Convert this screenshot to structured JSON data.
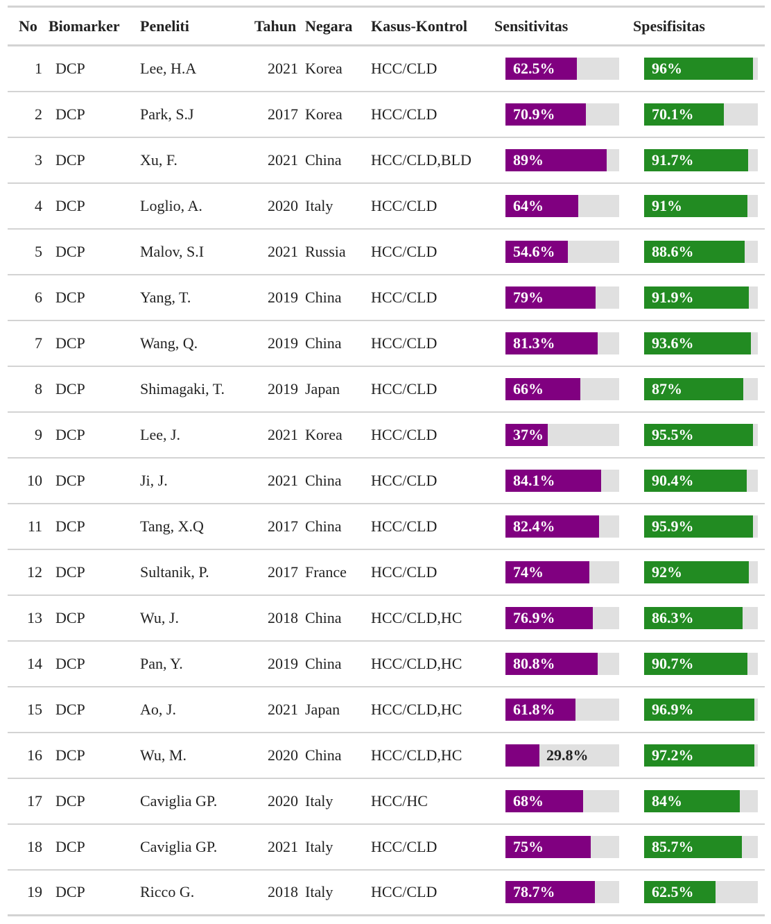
{
  "columns": {
    "no": "No",
    "biomarker": "Biomarker",
    "peneliti": "Peneliti",
    "tahun": "Tahun",
    "negara": "Negara",
    "kasus": "Kasus-Kontrol",
    "sensitivitas": "Sensitivitas",
    "spesifisitas": "Spesifisitas"
  },
  "colors": {
    "sensitivitas_bar": "#800080",
    "spesifisitas_bar": "#228b22",
    "bar_track": "#e0e0e0"
  },
  "rows": [
    {
      "no": "1",
      "biomarker": "DCP",
      "peneliti": "Lee, H.A",
      "tahun": "2021",
      "negara": "Korea",
      "kasus": "HCC/CLD",
      "sens": 62.5,
      "sens_label": "62.5%",
      "spec": 96,
      "spec_label": "96%"
    },
    {
      "no": "2",
      "biomarker": "DCP",
      "peneliti": "Park, S.J",
      "tahun": "2017",
      "negara": "Korea",
      "kasus": "HCC/CLD",
      "sens": 70.9,
      "sens_label": "70.9%",
      "spec": 70.1,
      "spec_label": "70.1%"
    },
    {
      "no": "3",
      "biomarker": "DCP",
      "peneliti": "Xu, F.",
      "tahun": "2021",
      "negara": "China",
      "kasus": "HCC/CLD,BLD",
      "sens": 89,
      "sens_label": "89%",
      "spec": 91.7,
      "spec_label": "91.7%"
    },
    {
      "no": "4",
      "biomarker": "DCP",
      "peneliti": "Loglio, A.",
      "tahun": "2020",
      "negara": "Italy",
      "kasus": "HCC/CLD",
      "sens": 64,
      "sens_label": "64%",
      "spec": 91,
      "spec_label": "91%"
    },
    {
      "no": "5",
      "biomarker": "DCP",
      "peneliti": "Malov, S.I",
      "tahun": "2021",
      "negara": "Russia",
      "kasus": "HCC/CLD",
      "sens": 54.6,
      "sens_label": "54.6%",
      "spec": 88.6,
      "spec_label": "88.6%"
    },
    {
      "no": "6",
      "biomarker": "DCP",
      "peneliti": "Yang, T.",
      "tahun": "2019",
      "negara": "China",
      "kasus": "HCC/CLD",
      "sens": 79,
      "sens_label": "79%",
      "spec": 91.9,
      "spec_label": "91.9%"
    },
    {
      "no": "7",
      "biomarker": "DCP",
      "peneliti": "Wang, Q.",
      "tahun": "2019",
      "negara": "China",
      "kasus": "HCC/CLD",
      "sens": 81.3,
      "sens_label": "81.3%",
      "spec": 93.6,
      "spec_label": "93.6%"
    },
    {
      "no": "8",
      "biomarker": "DCP",
      "peneliti": "Shimagaki, T.",
      "tahun": "2019",
      "negara": "Japan",
      "kasus": "HCC/CLD",
      "sens": 66,
      "sens_label": "66%",
      "spec": 87,
      "spec_label": "87%"
    },
    {
      "no": "9",
      "biomarker": "DCP",
      "peneliti": "Lee, J.",
      "tahun": "2021",
      "negara": "Korea",
      "kasus": "HCC/CLD",
      "sens": 37,
      "sens_label": "37%",
      "spec": 95.5,
      "spec_label": "95.5%"
    },
    {
      "no": "10",
      "biomarker": "DCP",
      "peneliti": "Ji, J.",
      "tahun": "2021",
      "negara": "China",
      "kasus": "HCC/CLD",
      "sens": 84.1,
      "sens_label": "84.1%",
      "spec": 90.4,
      "spec_label": "90.4%"
    },
    {
      "no": "11",
      "biomarker": "DCP",
      "peneliti": "Tang, X.Q",
      "tahun": "2017",
      "negara": "China",
      "kasus": "HCC/CLD",
      "sens": 82.4,
      "sens_label": "82.4%",
      "spec": 95.9,
      "spec_label": "95.9%"
    },
    {
      "no": "12",
      "biomarker": "DCP",
      "peneliti": "Sultanik, P.",
      "tahun": "2017",
      "negara": "France",
      "kasus": "HCC/CLD",
      "sens": 74,
      "sens_label": "74%",
      "spec": 92,
      "spec_label": "92%"
    },
    {
      "no": "13",
      "biomarker": "DCP",
      "peneliti": "Wu, J.",
      "tahun": "2018",
      "negara": "China",
      "kasus": "HCC/CLD,HC",
      "sens": 76.9,
      "sens_label": "76.9%",
      "spec": 86.3,
      "spec_label": "86.3%"
    },
    {
      "no": "14",
      "biomarker": "DCP",
      "peneliti": "Pan, Y.",
      "tahun": "2019",
      "negara": "China",
      "kasus": "HCC/CLD,HC",
      "sens": 80.8,
      "sens_label": "80.8%",
      "spec": 90.7,
      "spec_label": "90.7%"
    },
    {
      "no": "15",
      "biomarker": "DCP",
      "peneliti": "Ao, J.",
      "tahun": "2021",
      "negara": "Japan",
      "kasus": "HCC/CLD,HC",
      "sens": 61.8,
      "sens_label": "61.8%",
      "spec": 96.9,
      "spec_label": "96.9%"
    },
    {
      "no": "16",
      "biomarker": "DCP",
      "peneliti": "Wu, M.",
      "tahun": "2020",
      "negara": "China",
      "kasus": "HCC/CLD,HC",
      "sens": 29.8,
      "sens_label": "29.8%",
      "spec": 97.2,
      "spec_label": "97.2%"
    },
    {
      "no": "17",
      "biomarker": "DCP",
      "peneliti": "Caviglia GP.",
      "tahun": "2020",
      "negara": "Italy",
      "kasus": "HCC/HC",
      "sens": 68,
      "sens_label": "68%",
      "spec": 84,
      "spec_label": "84%"
    },
    {
      "no": "18",
      "biomarker": "DCP",
      "peneliti": "Caviglia GP.",
      "tahun": "2021",
      "negara": "Italy",
      "kasus": "HCC/CLD",
      "sens": 75,
      "sens_label": "75%",
      "spec": 85.7,
      "spec_label": "85.7%"
    },
    {
      "no": "19",
      "biomarker": "DCP",
      "peneliti": "Ricco G.",
      "tahun": "2018",
      "negara": "Italy",
      "kasus": "HCC/CLD",
      "sens": 78.7,
      "sens_label": "78.7%",
      "spec": 62.5,
      "spec_label": "62.5%"
    }
  ]
}
